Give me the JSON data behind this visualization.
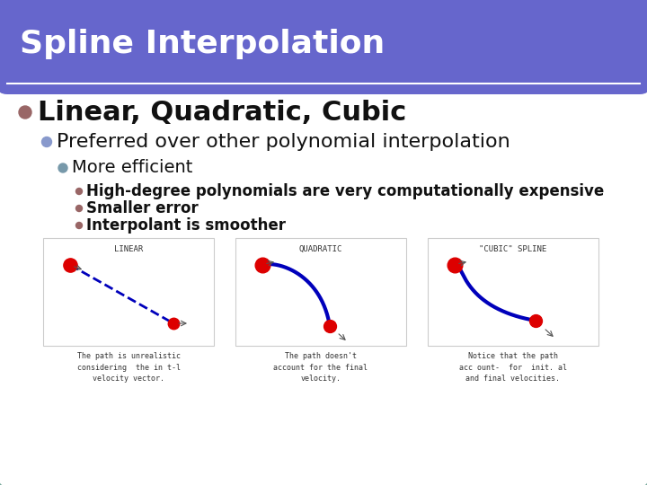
{
  "title": "Spline Interpolation",
  "title_bg_color": "#6666cc",
  "title_text_color": "#ffffff",
  "slide_bg_color": "#ffffff",
  "border_color": "#7aab9e",
  "border_width": 4,
  "title_font_size": 26,
  "bullet1_text": "Linear, Quadratic, Cubic",
  "bullet1_dot_color": "#996666",
  "bullet1_font_size": 22,
  "bullet2_text": "Preferred over other polynomial interpolation",
  "bullet2_dot_color": "#8899cc",
  "bullet2_font_size": 16,
  "bullet3_text": "More efficient",
  "bullet3_dot_color": "#7799aa",
  "bullet3_font_size": 14,
  "sub_bullets": [
    "High-degree polynomials are very computationally expensive",
    "Smaller error",
    "Interpolant is smoother"
  ],
  "sub_bullet_dot_color": "#996666",
  "sub_bullet_font_size": 12,
  "images_title": [
    "LINEAR",
    "QUADRATIC",
    "\"CUBIC\" SPLINE"
  ],
  "images_caption": [
    "The path is unrealistic\nconsidering  the in t-l\nvelocity vector.",
    "The path doesn't\naccount for the final\nvelocity.",
    "Notice that the path\nacc ount-  for  init. al\nand final velocities."
  ],
  "box_bg": "#ffffff",
  "box_edge": "#cccccc",
  "curve_color": "#0000bb",
  "dot_color": "#dd0000"
}
